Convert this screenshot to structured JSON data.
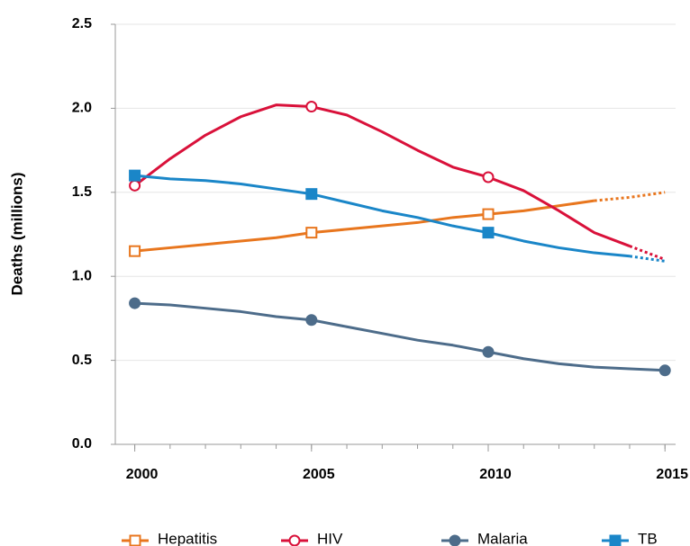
{
  "chart_data": {
    "type": "line",
    "y_label": "Deaths (millions)",
    "x": [
      2000,
      2001,
      2002,
      2003,
      2004,
      2005,
      2006,
      2007,
      2008,
      2009,
      2010,
      2011,
      2012,
      2013,
      2014,
      2015
    ],
    "xlim": [
      1999.45,
      2015.3
    ],
    "xticks": [
      2000,
      2005,
      2010,
      2015
    ],
    "ylim": [
      0,
      2.5
    ],
    "yticks": [
      {
        "value": 0,
        "label": "0.0"
      },
      0.5,
      {
        "value": 1,
        "label": "1.0"
      },
      1.5,
      {
        "value": 2,
        "label": "2.0"
      },
      2.5
    ],
    "grid": true,
    "legend": "bottom",
    "series": [
      {
        "name": "Hepatitis",
        "color": "#e8761e",
        "marker": "square-open",
        "dashed_from": 2013,
        "values": [
          1.15,
          1.17,
          1.19,
          1.21,
          1.23,
          1.26,
          1.28,
          1.3,
          1.32,
          1.35,
          1.37,
          1.39,
          1.42,
          1.45,
          1.47,
          1.5
        ]
      },
      {
        "name": "HIV",
        "color": "#d9113a",
        "marker": "circle-open",
        "dashed_from": 2014,
        "values": [
          1.54,
          1.7,
          1.84,
          1.95,
          2.02,
          2.01,
          1.96,
          1.86,
          1.75,
          1.65,
          1.59,
          1.51,
          1.39,
          1.26,
          1.18,
          1.1
        ]
      },
      {
        "name": "Malaria",
        "color": "#4d6c8a",
        "marker": "circle",
        "values": [
          0.84,
          0.83,
          0.81,
          0.79,
          0.76,
          0.74,
          0.7,
          0.66,
          0.62,
          0.59,
          0.55,
          0.51,
          0.48,
          0.46,
          0.45,
          0.44
        ]
      },
      {
        "name": "TB",
        "color": "#1a86c8",
        "marker": "square",
        "dashed_from": 2014,
        "values": [
          1.6,
          1.58,
          1.57,
          1.55,
          1.52,
          1.49,
          1.44,
          1.39,
          1.35,
          1.3,
          1.26,
          1.21,
          1.17,
          1.14,
          1.12,
          1.09
        ]
      }
    ]
  }
}
